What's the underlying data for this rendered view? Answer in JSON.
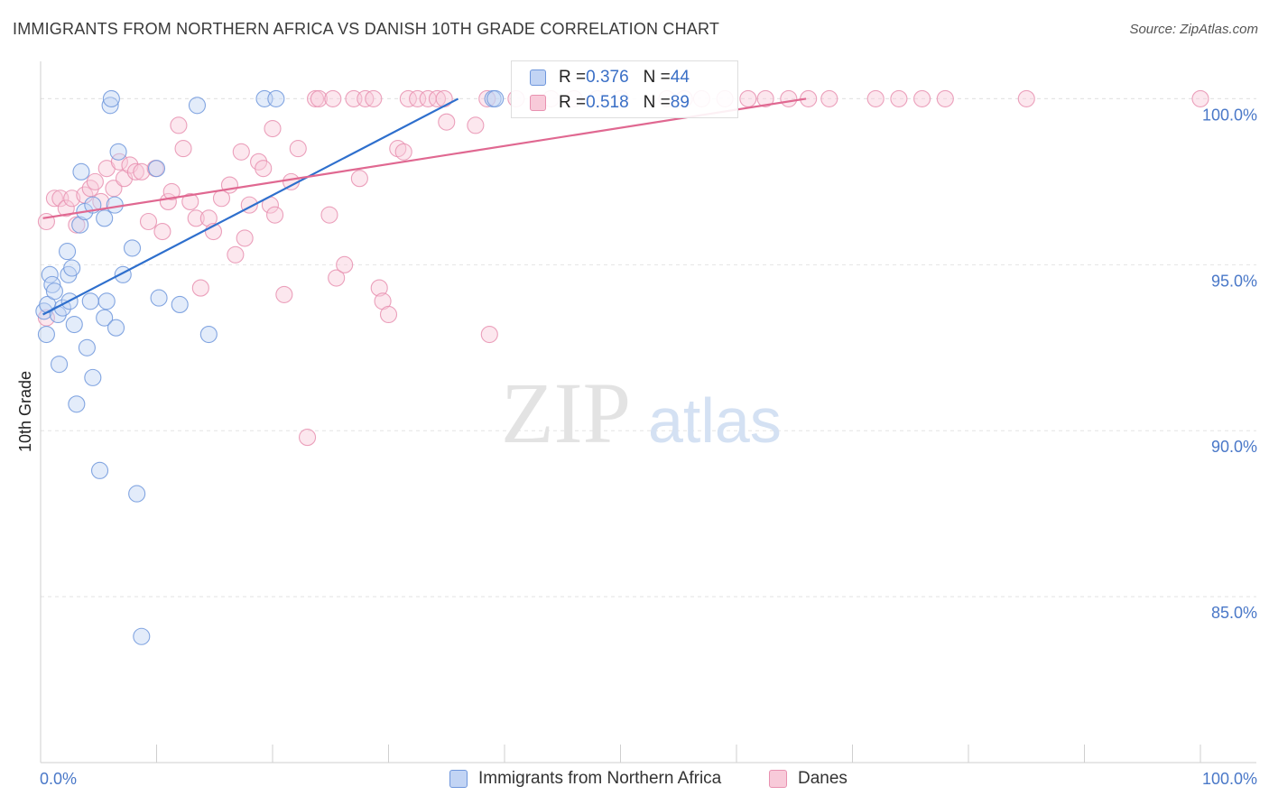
{
  "title": "IMMIGRANTS FROM NORTHERN AFRICA VS DANISH 10TH GRADE CORRELATION CHART",
  "source": "Source: ZipAtlas.com",
  "watermark": {
    "zip": "ZIP",
    "atlas": "atlas"
  },
  "legend": {
    "blue": {
      "r_label": "R = ",
      "r_value": "0.376",
      "n_label": "N = ",
      "n_value": "44"
    },
    "pink": {
      "r_label": "R = ",
      "r_value": "0.518",
      "n_label": "N = ",
      "n_value": "89"
    }
  },
  "bottom_legend": {
    "blue": "Immigrants from Northern Africa",
    "pink": "Danes"
  },
  "colors": {
    "blue": "#6e96dc",
    "blue_fill": "#c2d4f4",
    "blue_line": "#2e6fcd",
    "pink": "#e891b0",
    "pink_fill": "#f8cad9",
    "pink_line": "#e06891"
  },
  "chart_data": {
    "type": "scatter",
    "title": "IMMIGRANTS FROM NORTHERN AFRICA VS DANISH 10TH GRADE CORRELATION CHART",
    "xlabel": "",
    "ylabel": "10th Grade",
    "xlim": [
      0,
      100
    ],
    "ylim": [
      80.0,
      100.8
    ],
    "x_tick_labels": [
      "0.0%",
      "100.0%"
    ],
    "y_ticks": [
      85,
      90,
      95,
      100
    ],
    "y_tick_labels": [
      "85.0%",
      "90.0%",
      "95.0%",
      "100.0%"
    ],
    "grid": true,
    "legend_position": "top-center",
    "series": [
      {
        "name": "Immigrants from Northern Africa",
        "color": "blue",
        "r": 0.376,
        "n": 44,
        "trend": [
          [
            0.2,
            93.5
          ],
          [
            36.0,
            100.0
          ]
        ],
        "points": [
          [
            0.3,
            93.6
          ],
          [
            0.5,
            92.9
          ],
          [
            0.6,
            93.8
          ],
          [
            0.8,
            94.7
          ],
          [
            1.0,
            94.4
          ],
          [
            1.2,
            94.2
          ],
          [
            1.5,
            93.5
          ],
          [
            1.6,
            92.0
          ],
          [
            1.9,
            93.7
          ],
          [
            2.3,
            95.4
          ],
          [
            2.4,
            94.7
          ],
          [
            2.5,
            93.9
          ],
          [
            2.7,
            94.9
          ],
          [
            2.9,
            93.2
          ],
          [
            3.1,
            90.8
          ],
          [
            3.4,
            96.2
          ],
          [
            3.5,
            97.8
          ],
          [
            3.8,
            96.6
          ],
          [
            4.0,
            92.5
          ],
          [
            4.3,
            93.9
          ],
          [
            4.5,
            91.6
          ],
          [
            4.5,
            96.8
          ],
          [
            5.1,
            88.8
          ],
          [
            5.5,
            96.4
          ],
          [
            5.5,
            93.4
          ],
          [
            5.7,
            93.9
          ],
          [
            6.0,
            99.8
          ],
          [
            6.1,
            100.0
          ],
          [
            6.4,
            96.8
          ],
          [
            6.5,
            93.1
          ],
          [
            6.7,
            98.4
          ],
          [
            7.1,
            94.7
          ],
          [
            7.9,
            95.5
          ],
          [
            8.3,
            88.1
          ],
          [
            8.7,
            83.8
          ],
          [
            10.0,
            97.9
          ],
          [
            10.2,
            94.0
          ],
          [
            12.0,
            93.8
          ],
          [
            13.5,
            99.8
          ],
          [
            14.5,
            92.9
          ],
          [
            19.3,
            100.0
          ],
          [
            20.3,
            100.0
          ],
          [
            39.0,
            100.0
          ],
          [
            39.2,
            100.0
          ]
        ]
      },
      {
        "name": "Danes",
        "color": "pink",
        "r": 0.518,
        "n": 89,
        "trend": [
          [
            0.2,
            96.4
          ],
          [
            66.0,
            100.0
          ]
        ],
        "points": [
          [
            0.5,
            96.3
          ],
          [
            0.5,
            93.4
          ],
          [
            1.2,
            97.0
          ],
          [
            1.7,
            97.0
          ],
          [
            2.2,
            96.7
          ],
          [
            2.7,
            97.0
          ],
          [
            3.1,
            96.2
          ],
          [
            3.8,
            97.1
          ],
          [
            4.3,
            97.3
          ],
          [
            4.7,
            97.5
          ],
          [
            5.2,
            96.9
          ],
          [
            5.7,
            97.9
          ],
          [
            6.3,
            97.3
          ],
          [
            6.8,
            98.1
          ],
          [
            7.2,
            97.6
          ],
          [
            7.7,
            98.0
          ],
          [
            8.2,
            97.8
          ],
          [
            8.7,
            97.8
          ],
          [
            9.3,
            96.3
          ],
          [
            9.9,
            97.9
          ],
          [
            10.5,
            96.0
          ],
          [
            11.0,
            96.9
          ],
          [
            11.3,
            97.2
          ],
          [
            11.9,
            99.2
          ],
          [
            12.3,
            98.5
          ],
          [
            12.9,
            96.9
          ],
          [
            13.4,
            96.4
          ],
          [
            13.8,
            94.3
          ],
          [
            14.5,
            96.4
          ],
          [
            14.9,
            96.0
          ],
          [
            15.6,
            97.0
          ],
          [
            16.3,
            97.4
          ],
          [
            16.8,
            95.3
          ],
          [
            17.3,
            98.4
          ],
          [
            17.6,
            95.8
          ],
          [
            18.0,
            96.8
          ],
          [
            18.8,
            98.1
          ],
          [
            19.2,
            97.9
          ],
          [
            19.8,
            96.8
          ],
          [
            20.0,
            99.1
          ],
          [
            20.2,
            96.5
          ],
          [
            21.0,
            94.1
          ],
          [
            21.6,
            97.5
          ],
          [
            22.2,
            98.5
          ],
          [
            23.0,
            89.8
          ],
          [
            23.7,
            100.0
          ],
          [
            24.0,
            100.0
          ],
          [
            24.9,
            96.5
          ],
          [
            25.2,
            100.0
          ],
          [
            25.5,
            94.6
          ],
          [
            26.2,
            95.0
          ],
          [
            27.0,
            100.0
          ],
          [
            27.5,
            97.6
          ],
          [
            28.0,
            100.0
          ],
          [
            28.7,
            100.0
          ],
          [
            29.2,
            94.3
          ],
          [
            29.5,
            93.9
          ],
          [
            30.0,
            93.5
          ],
          [
            30.8,
            98.5
          ],
          [
            31.3,
            98.4
          ],
          [
            31.7,
            100.0
          ],
          [
            32.5,
            100.0
          ],
          [
            33.4,
            100.0
          ],
          [
            34.2,
            100.0
          ],
          [
            34.8,
            100.0
          ],
          [
            35.0,
            99.3
          ],
          [
            37.5,
            99.2
          ],
          [
            38.5,
            100.0
          ],
          [
            38.7,
            92.9
          ],
          [
            41.0,
            100.0
          ],
          [
            44.0,
            100.0
          ],
          [
            46.0,
            100.0
          ],
          [
            48.0,
            100.0
          ],
          [
            50.0,
            100.0
          ],
          [
            54.0,
            100.0
          ],
          [
            55.5,
            100.0
          ],
          [
            57.0,
            100.0
          ],
          [
            59.0,
            100.0
          ],
          [
            61.0,
            100.0
          ],
          [
            62.5,
            100.0
          ],
          [
            64.5,
            100.0
          ],
          [
            66.2,
            100.0
          ],
          [
            68.0,
            100.0
          ],
          [
            72.0,
            100.0
          ],
          [
            74.0,
            100.0
          ],
          [
            76.0,
            100.0
          ],
          [
            78.0,
            100.0
          ],
          [
            85.0,
            100.0
          ],
          [
            100.0,
            100.0
          ]
        ]
      }
    ]
  }
}
